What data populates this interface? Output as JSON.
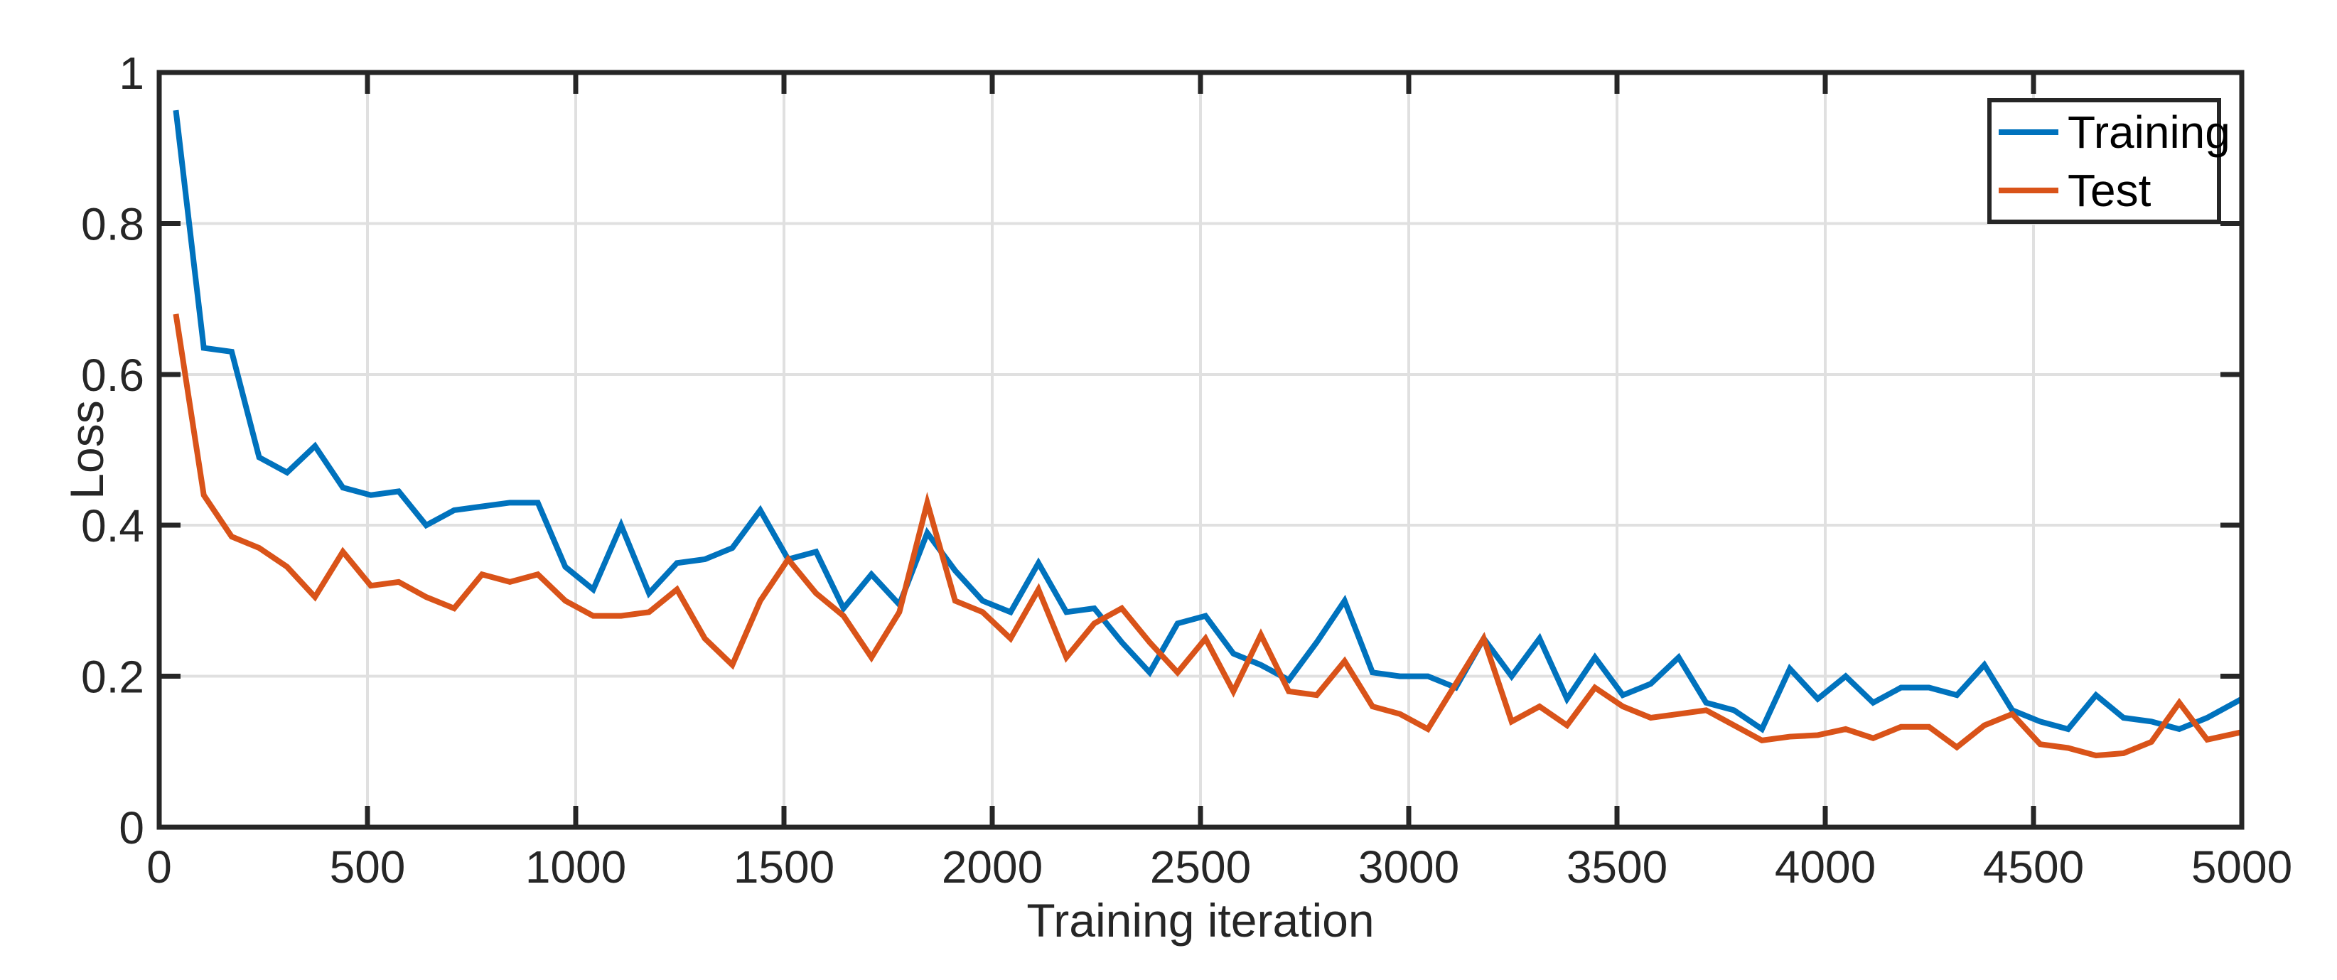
{
  "figure": {
    "background_color": "#ffffff",
    "axes_color": "#262626",
    "grid_color": "#e0e0e0"
  },
  "chart_data": {
    "type": "line",
    "title": "",
    "xlabel": "Training iteration",
    "ylabel": "Loss",
    "xlim": [
      0,
      5000
    ],
    "ylim": [
      0,
      1
    ],
    "xticks": [
      0,
      500,
      1000,
      1500,
      2000,
      2500,
      3000,
      3500,
      4000,
      4500,
      5000
    ],
    "xtick_labels": [
      "0",
      "500",
      "1000",
      "1500",
      "2000",
      "2500",
      "3000",
      "3500",
      "4000",
      "4500",
      "5000"
    ],
    "yticks": [
      0,
      0.2,
      0.4,
      0.6,
      0.8,
      1
    ],
    "ytick_labels": [
      "0",
      "0.2",
      "0.4",
      "0.6",
      "0.8",
      "1"
    ],
    "grid": true,
    "legend_position": "northeast",
    "x": [
      40,
      107,
      174,
      240,
      307,
      374,
      441,
      508,
      575,
      641,
      708,
      775,
      842,
      909,
      975,
      1042,
      1109,
      1176,
      1243,
      1310,
      1376,
      1443,
      1510,
      1577,
      1643,
      1710,
      1777,
      1844,
      1911,
      1977,
      2044,
      2111,
      2178,
      2245,
      2311,
      2378,
      2445,
      2512,
      2579,
      2645,
      2712,
      2779,
      2846,
      2913,
      2979,
      3046,
      3113,
      3180,
      3247,
      3314,
      3380,
      3447,
      3514,
      3581,
      3648,
      3714,
      3781,
      3848,
      3915,
      3982,
      4049,
      4115,
      4182,
      4249,
      4316,
      4382,
      4449,
      4516,
      4583,
      4650,
      4716,
      4783,
      4850,
      4917,
      5000
    ],
    "series": [
      {
        "name": "Training",
        "color": "#0072BD",
        "values": [
          0.95,
          0.635,
          0.63,
          0.49,
          0.47,
          0.505,
          0.45,
          0.44,
          0.445,
          0.4,
          0.42,
          0.425,
          0.43,
          0.43,
          0.345,
          0.315,
          0.4,
          0.31,
          0.35,
          0.355,
          0.37,
          0.42,
          0.355,
          0.365,
          0.29,
          0.335,
          0.295,
          0.39,
          0.34,
          0.3,
          0.285,
          0.35,
          0.285,
          0.29,
          0.245,
          0.205,
          0.27,
          0.28,
          0.23,
          0.215,
          0.195,
          0.245,
          0.3,
          0.205,
          0.2,
          0.2,
          0.185,
          0.25,
          0.2,
          0.25,
          0.17,
          0.225,
          0.175,
          0.19,
          0.225,
          0.165,
          0.155,
          0.13,
          0.21,
          0.17,
          0.2,
          0.165,
          0.185,
          0.185,
          0.175,
          0.215,
          0.155,
          0.14,
          0.13,
          0.175,
          0.145,
          0.14,
          0.13,
          0.145,
          0.17
        ]
      },
      {
        "name": "Test",
        "color": "#D95319",
        "values": [
          0.68,
          0.44,
          0.385,
          0.37,
          0.345,
          0.305,
          0.365,
          0.32,
          0.325,
          0.305,
          0.29,
          0.335,
          0.325,
          0.335,
          0.3,
          0.28,
          0.28,
          0.285,
          0.315,
          0.25,
          0.215,
          0.3,
          0.355,
          0.31,
          0.28,
          0.225,
          0.285,
          0.43,
          0.3,
          0.285,
          0.25,
          0.315,
          0.225,
          0.27,
          0.29,
          0.245,
          0.205,
          0.25,
          0.18,
          0.255,
          0.18,
          0.175,
          0.22,
          0.16,
          0.15,
          0.13,
          0.19,
          0.25,
          0.14,
          0.16,
          0.135,
          0.185,
          0.16,
          0.145,
          0.15,
          0.155,
          0.135,
          0.115,
          0.12,
          0.122,
          0.13,
          0.118,
          0.133,
          0.133,
          0.106,
          0.135,
          0.15,
          0.11,
          0.105,
          0.095,
          0.098,
          0.113,
          0.165,
          0.116,
          0.126
        ]
      }
    ]
  },
  "legend": {
    "entries": [
      {
        "label": "Training",
        "color": "#0072BD"
      },
      {
        "label": "Test",
        "color": "#D95319"
      }
    ]
  }
}
